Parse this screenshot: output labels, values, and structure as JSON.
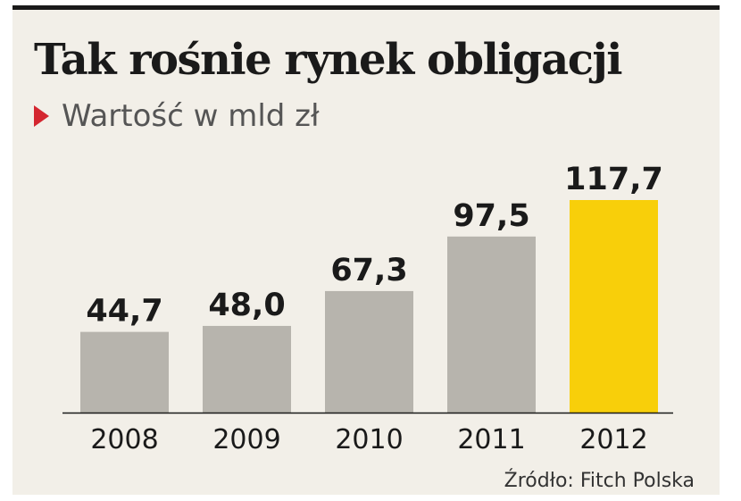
{
  "chart_data": {
    "type": "bar",
    "title": "Tak rośnie rynek obligacji",
    "subtitle": "Wartość w mld zł",
    "categories": [
      "2008",
      "2009",
      "2010",
      "2011",
      "2012"
    ],
    "values": [
      44.7,
      48.0,
      67.3,
      97.5,
      117.7
    ],
    "value_labels": [
      "44,7",
      "48,0",
      "67,3",
      "97,5",
      "117,7"
    ],
    "colors": [
      "#b7b4ad",
      "#b7b4ad",
      "#b7b4ad",
      "#b7b4ad",
      "#f8cf0a"
    ],
    "ylim": [
      0,
      117.7
    ],
    "grid": false,
    "source": "Źródło: Fitch Polska"
  }
}
